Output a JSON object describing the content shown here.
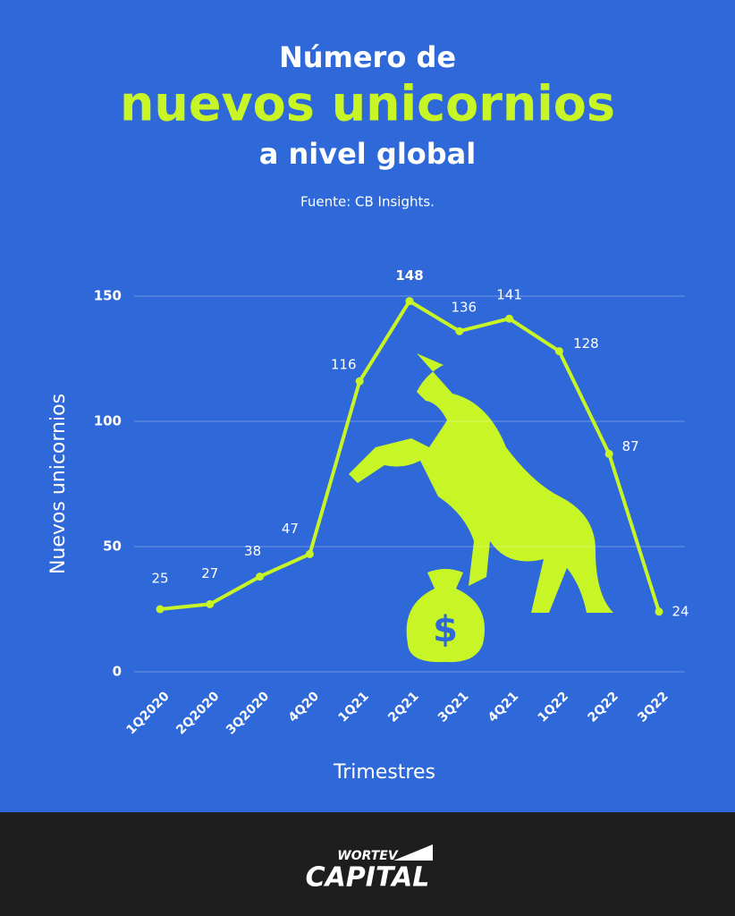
{
  "chart_data": {
    "type": "line",
    "title": "Número de",
    "title_highlight": "nuevos unicornios",
    "title_end": "a nivel global",
    "subtitle": "Fuente: CB Insights.",
    "y_label": "Nuevos unicornios",
    "x_label": "Trimestres",
    "categories": [
      "1Q2020",
      "2Q2020",
      "3Q2020",
      "4Q20",
      "1Q21",
      "2Q21",
      "3Q21",
      "4Q21",
      "1Q22",
      "2Q22",
      "3Q22"
    ],
    "values": [
      25,
      27,
      38,
      47,
      116,
      148,
      136,
      141,
      128,
      87,
      24
    ],
    "color": "#c8f526",
    "ylim": [
      0,
      150
    ],
    "yticks": [
      0,
      50,
      100,
      150
    ],
    "grid": true
  },
  "footer": {
    "brand_top": "WORTEV",
    "brand_bottom": "CAPITAL"
  }
}
